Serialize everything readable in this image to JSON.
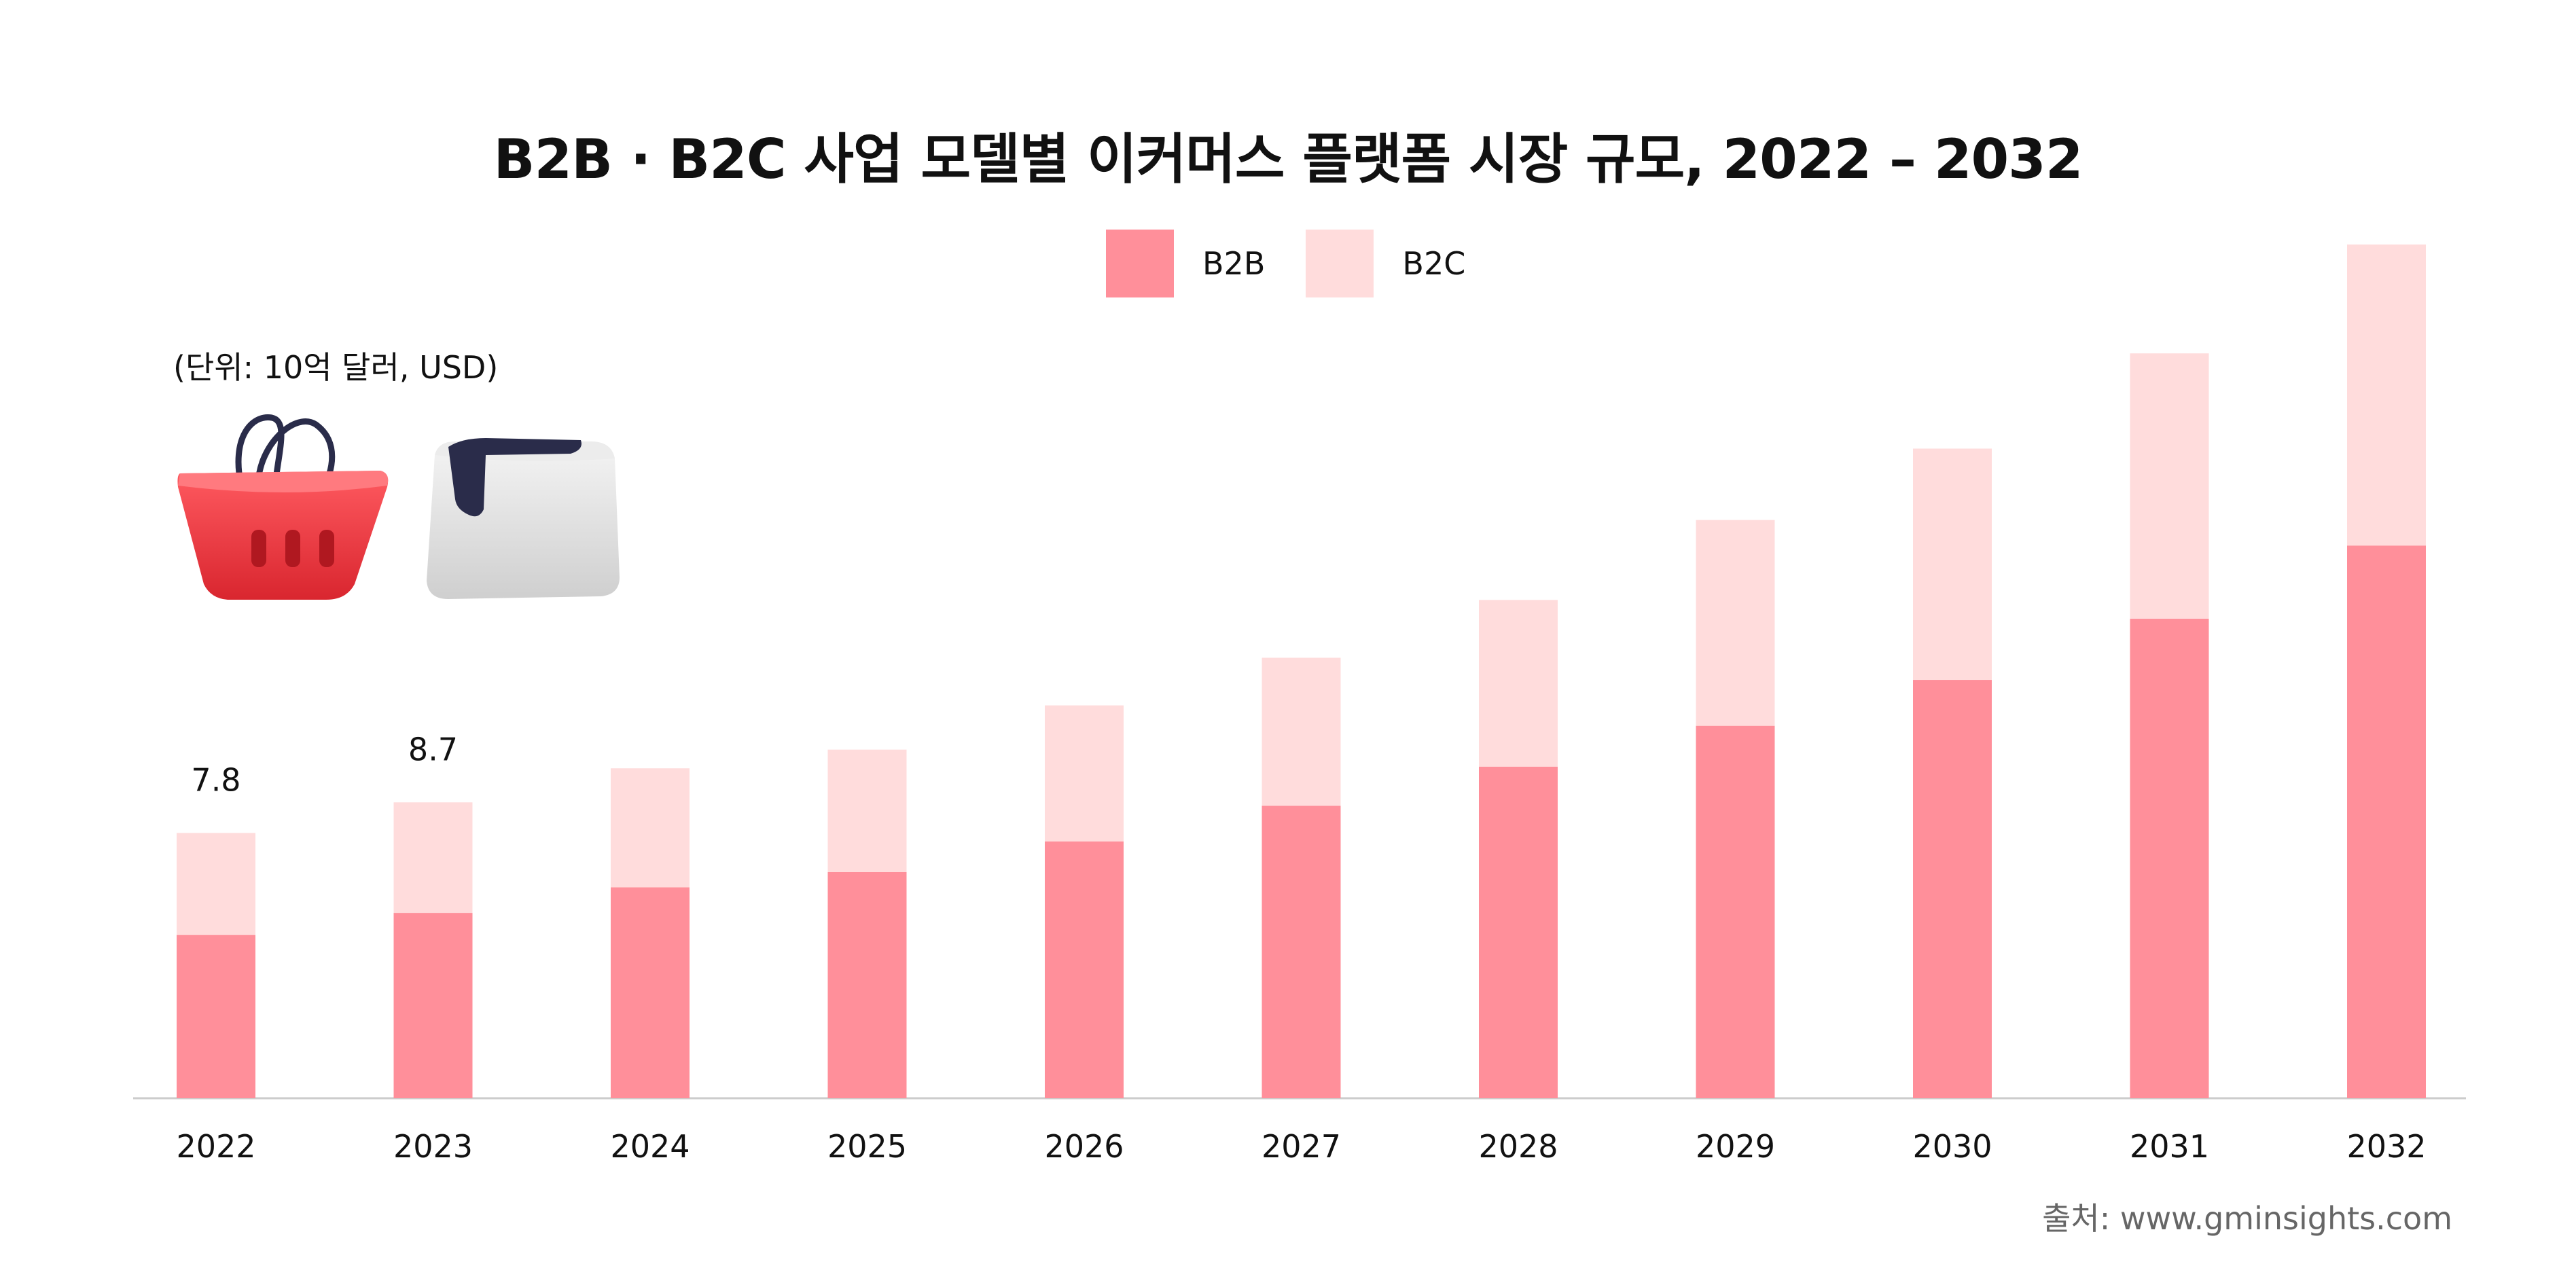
{
  "chart_data": {
    "type": "stacked-bar",
    "title": "B2B · B2C 사업 모델별 이커머스 플랫폼 시장 규모, 2022 – 2032",
    "unit": "(단위: 10억 달러, USD)",
    "categories": [
      "2022",
      "2023",
      "2024",
      "2025",
      "2026",
      "2027",
      "2028",
      "2029",
      "2030",
      "2031",
      "2032"
    ],
    "series": [
      {
        "name": "B2B",
        "color": "#ff8f9a",
        "values": [
          4.8,
          5.45,
          6.2,
          6.65,
          7.55,
          8.6,
          9.75,
          10.95,
          12.3,
          14.1,
          16.25
        ]
      },
      {
        "name": "B2C",
        "color": "#ffdcdc",
        "values": [
          3.0,
          3.25,
          3.5,
          3.6,
          4.0,
          4.35,
          4.9,
          6.05,
          6.8,
          7.8,
          8.85
        ]
      }
    ],
    "data_labels": [
      {
        "category": "2022",
        "text": "7.8"
      },
      {
        "category": "2023",
        "text": "8.7"
      }
    ],
    "ylim": [
      0,
      25.5
    ],
    "xlabel": "",
    "ylabel": "",
    "source": "출처: www.gminsights.com"
  },
  "colors": {
    "axis": "#cccccc",
    "text": "#111111",
    "basket": "#f4474f",
    "handle": "#2a2c4a",
    "box": "#e6e6e6"
  },
  "icons": [
    "shopping-basket-icon",
    "package-box-icon"
  ]
}
